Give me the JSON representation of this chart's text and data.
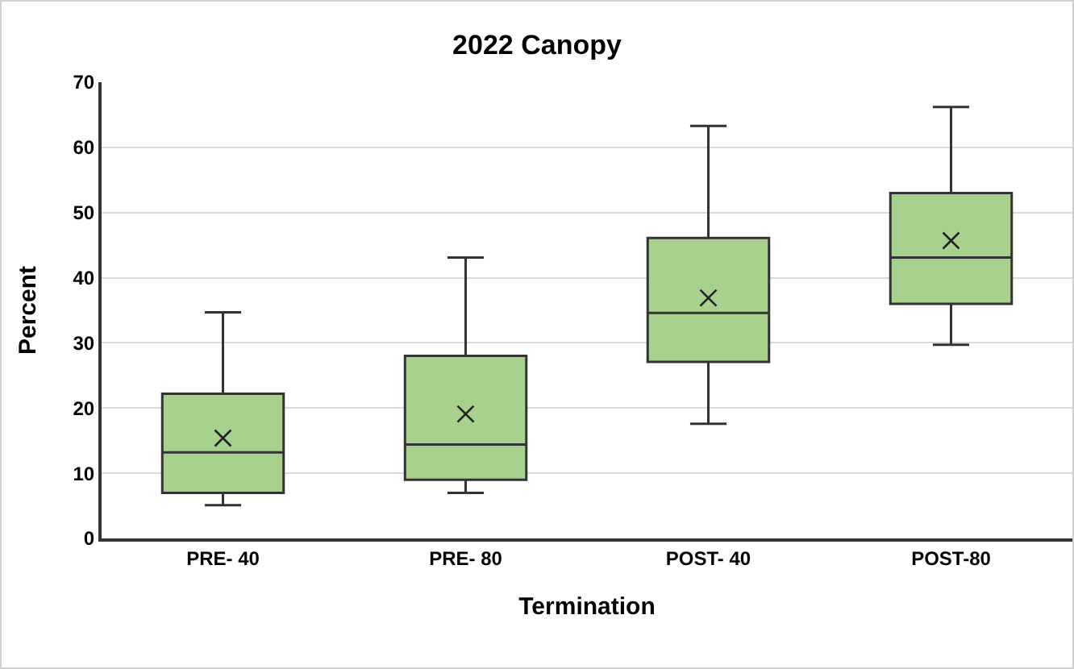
{
  "chart_data": {
    "type": "box",
    "title": "2022 Canopy",
    "xlabel": "Termination",
    "ylabel": "Percent",
    "categories": [
      "PRE- 40",
      "PRE- 80",
      "POST- 40",
      "POST-80"
    ],
    "boxes": [
      {
        "low": 5.1,
        "q1": 7.0,
        "median": 13.2,
        "q3": 22.2,
        "high": 34.7,
        "mean": 15.4
      },
      {
        "low": 7.0,
        "q1": 9.0,
        "median": 14.4,
        "q3": 28.0,
        "high": 43.1,
        "mean": 19.1
      },
      {
        "low": 17.6,
        "q1": 27.1,
        "median": 34.6,
        "q3": 46.1,
        "high": 63.3,
        "mean": 36.9
      },
      {
        "low": 29.7,
        "q1": 36.0,
        "median": 43.1,
        "q3": 53.0,
        "high": 66.2,
        "mean": 45.7
      }
    ],
    "color": "#a9d18e",
    "ylim": [
      0,
      70
    ],
    "yticks": [
      0,
      10,
      20,
      30,
      40,
      50,
      60,
      70
    ],
    "grid": "y"
  }
}
